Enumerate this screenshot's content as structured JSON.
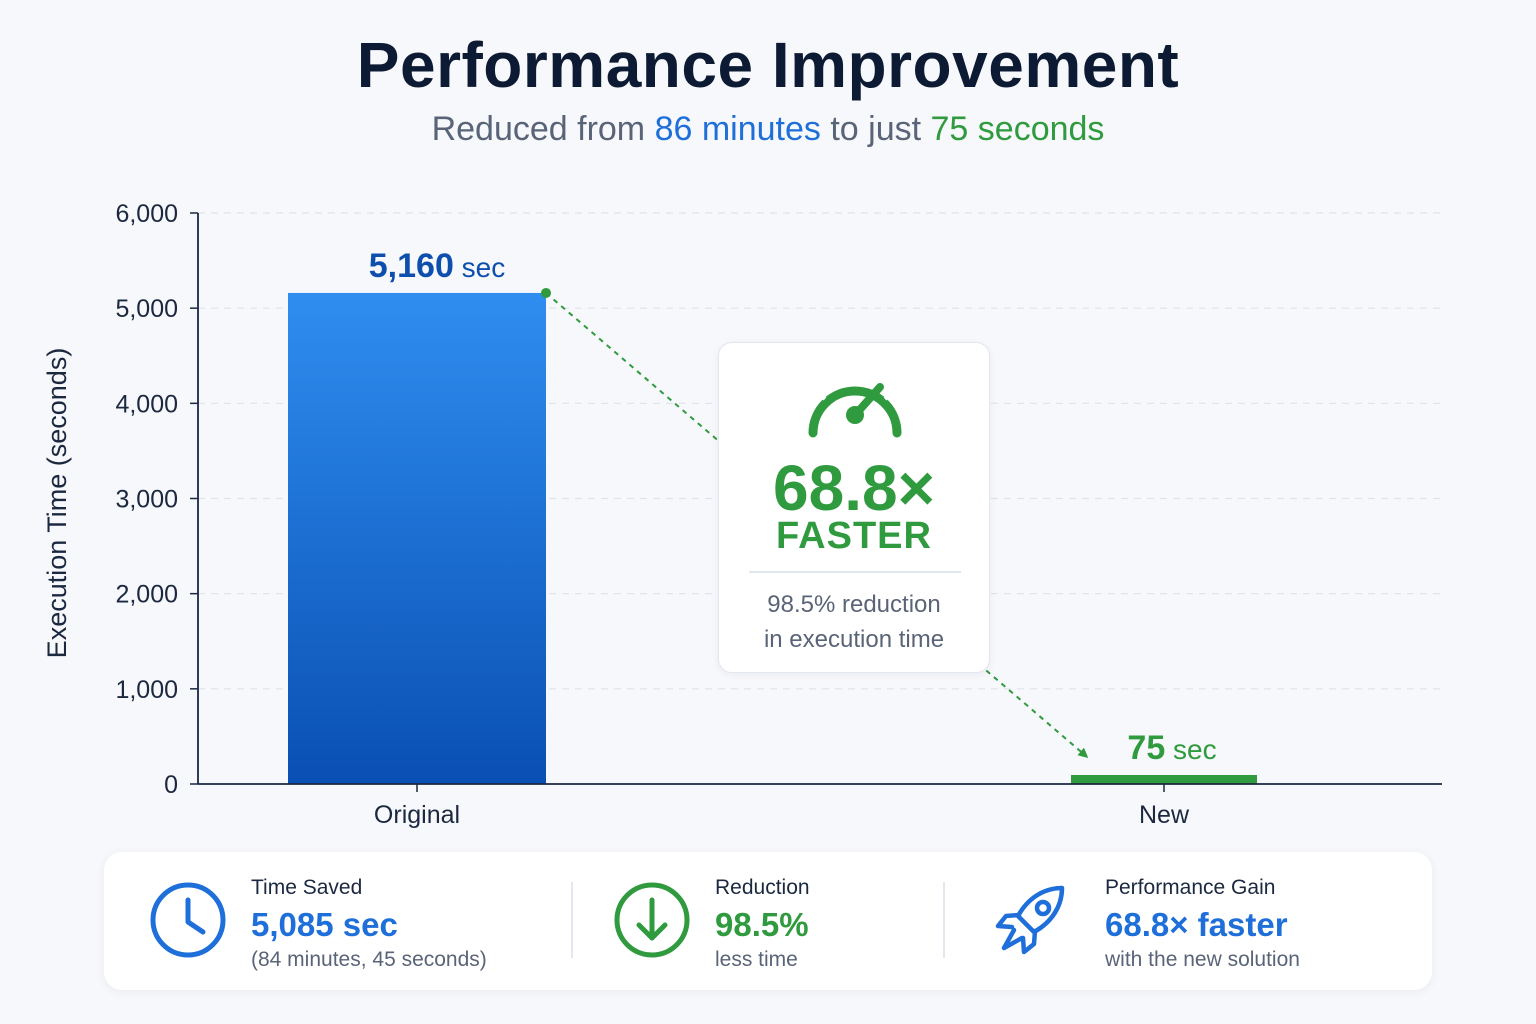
{
  "header": {
    "title": "Performance Improvement",
    "subtitle_prefix": "Reduced from ",
    "subtitle_from": "86 minutes",
    "subtitle_mid": " to just ",
    "subtitle_to": "75 seconds"
  },
  "chart_data": {
    "type": "bar",
    "categories": [
      "Original",
      "New"
    ],
    "values": [
      5160,
      75
    ],
    "data_labels": [
      {
        "number": "5,160",
        "unit": " sec"
      },
      {
        "number": "75",
        "unit": " sec"
      }
    ],
    "ylabel": "Execution Time (seconds)",
    "xlabel": "",
    "ylim": [
      0,
      6000
    ],
    "yticks": [
      0,
      1000,
      2000,
      3000,
      4000,
      5000,
      6000
    ],
    "ytick_labels": [
      "0",
      "1,000",
      "2,000",
      "3,000",
      "4,000",
      "5,000",
      "6,000"
    ],
    "grid": true,
    "bar_colors": [
      "#1e6fd9",
      "#2f9a3e"
    ]
  },
  "callout": {
    "icon": "speedometer-icon",
    "factor": "68.8×",
    "label": "FASTER",
    "desc_line1": "98.5% reduction",
    "desc_line2": "in execution time"
  },
  "stats": [
    {
      "icon": "clock-icon",
      "label": "Time Saved",
      "value": "5,085 sec",
      "note": "(84 minutes, 45 seconds)",
      "color": "#1e6fd9"
    },
    {
      "icon": "arrow-down-circle-icon",
      "label": "Reduction",
      "value": "98.5%",
      "note": "less time",
      "color": "#2f9a3e"
    },
    {
      "icon": "rocket-icon",
      "label": "Performance Gain",
      "value": "68.8× faster",
      "note": "with the new solution",
      "color": "#1e6fd9"
    }
  ],
  "colors": {
    "blue": "#1e6fd9",
    "green": "#2f9a3e",
    "title": "#0d1a33",
    "muted": "#5a6478"
  }
}
